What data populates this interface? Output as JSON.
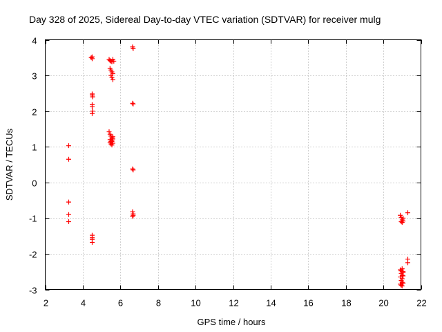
{
  "chart_data": {
    "type": "scatter",
    "title": "Day 328 of 2025, Sidereal Day-to-day VTEC variation (SDTVAR) for receiver mulg",
    "xlabel": "GPS time / hours",
    "ylabel": "SDTVAR / TECUs",
    "xlim": [
      2,
      22
    ],
    "ylim": [
      -3,
      4
    ],
    "xticks": [
      2,
      4,
      6,
      8,
      10,
      12,
      14,
      16,
      18,
      20,
      22
    ],
    "yticks": [
      -3,
      -2,
      -1,
      0,
      1,
      2,
      3,
      4
    ],
    "grid": true,
    "marker": "+",
    "color": "#ff0000",
    "series": [
      {
        "name": "SDTVAR",
        "x": [
          3.25,
          3.25,
          3.25,
          3.25,
          3.25,
          4.45,
          4.5,
          4.5,
          4.5,
          4.5,
          4.52,
          4.5,
          4.5,
          4.52,
          4.5,
          4.5,
          4.5,
          4.5,
          4.5,
          5.4,
          5.45,
          5.5,
          5.55,
          5.6,
          5.45,
          5.5,
          5.55,
          5.6,
          5.5,
          5.55,
          5.6,
          5.65,
          5.4,
          5.45,
          5.5,
          5.55,
          5.6,
          5.45,
          5.5,
          5.55,
          5.6,
          5.45,
          5.5,
          5.55,
          5.6,
          5.5,
          5.55,
          6.65,
          6.68,
          6.65,
          6.68,
          6.65,
          6.68,
          6.65,
          6.68,
          6.65,
          6.68,
          20.9,
          20.95,
          21.0,
          21.05,
          20.95,
          21.0,
          21.05,
          21.3,
          21.3,
          21.3,
          20.9,
          20.95,
          21.0,
          21.05,
          20.95,
          21.0,
          21.05,
          20.9,
          21.0,
          21.05,
          20.95,
          21.0,
          20.9,
          20.95,
          21.0,
          21.05
        ],
        "y": [
          1.03,
          0.65,
          -0.55,
          -0.9,
          -1.1,
          3.5,
          3.52,
          3.47,
          2.48,
          2.45,
          2.4,
          2.18,
          2.12,
          2.0,
          1.93,
          -1.48,
          -1.55,
          -1.6,
          -1.68,
          3.45,
          3.42,
          3.4,
          3.38,
          3.45,
          3.2,
          3.15,
          3.1,
          3.05,
          3.0,
          2.95,
          2.88,
          3.4,
          1.42,
          1.35,
          1.3,
          1.25,
          1.28,
          1.2,
          1.15,
          1.18,
          1.1,
          1.12,
          1.08,
          1.15,
          1.22,
          1.3,
          1.05,
          3.8,
          3.75,
          2.22,
          2.2,
          0.38,
          0.35,
          -0.82,
          -0.88,
          -0.95,
          -0.92,
          -0.92,
          -0.98,
          -1.05,
          -1.0,
          -1.1,
          -1.12,
          -1.08,
          -0.85,
          -2.15,
          -2.25,
          -2.45,
          -2.48,
          -2.42,
          -2.5,
          -2.55,
          -2.6,
          -2.52,
          -2.65,
          -2.7,
          -2.62,
          -2.75,
          -2.8,
          -2.85,
          -2.88,
          -2.9,
          -2.82
        ]
      }
    ]
  }
}
